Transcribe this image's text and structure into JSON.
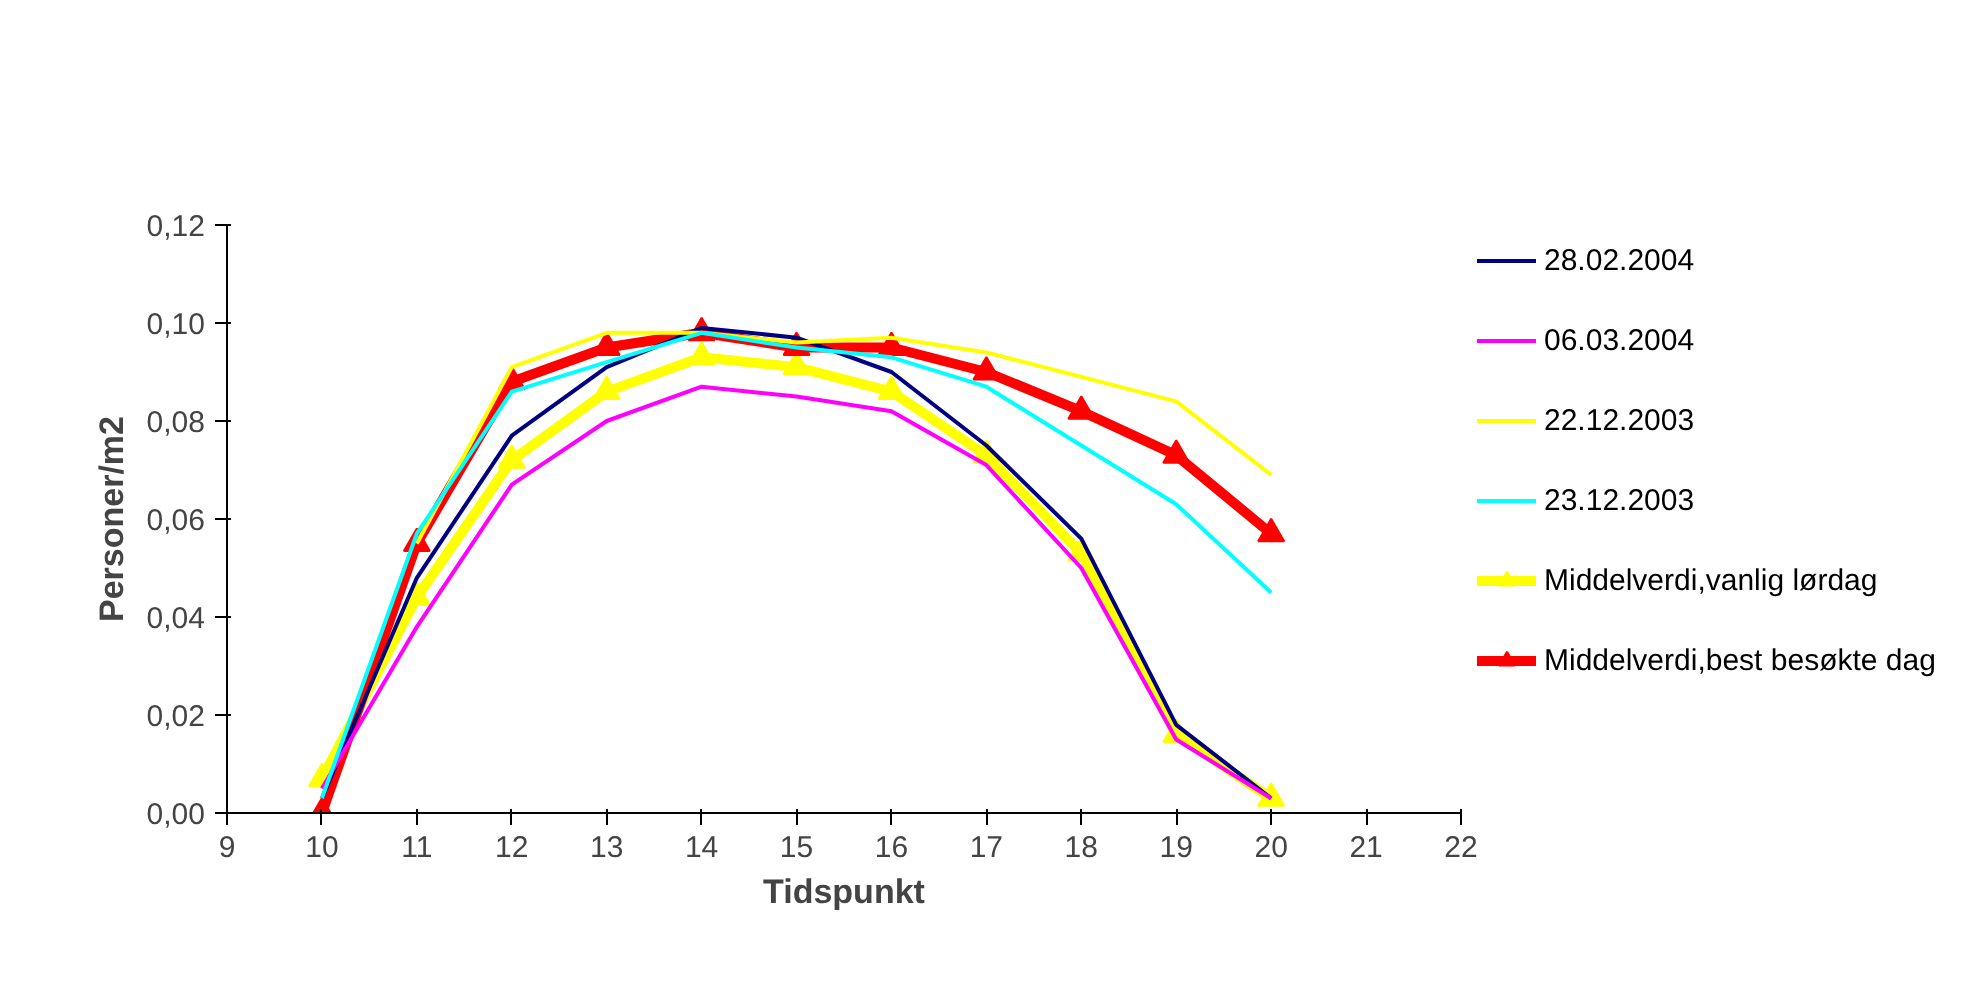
{
  "chart_data": {
    "type": "line",
    "xlabel": "Tidspunkt",
    "ylabel": "Personer/m2",
    "x": [
      10,
      11,
      12,
      13,
      14,
      15,
      16,
      17,
      18,
      19,
      20
    ],
    "xlim": [
      9,
      22
    ],
    "xticks": [
      9,
      10,
      11,
      12,
      13,
      14,
      15,
      16,
      17,
      18,
      19,
      20,
      21,
      22
    ],
    "ylim": [
      0,
      0.12
    ],
    "yticks": [
      {
        "value": 0,
        "label": "0,00"
      },
      {
        "value": 0.02,
        "label": "0,02"
      },
      {
        "value": 0.04,
        "label": "0,04"
      },
      {
        "value": 0.06,
        "label": "0,06"
      },
      {
        "value": 0.08,
        "label": "0,08"
      },
      {
        "value": 0.1,
        "label": "0,10"
      },
      {
        "value": 0.12,
        "label": "0,12"
      }
    ],
    "grid": false,
    "legend": "right",
    "series": [
      {
        "name": "28.02.2004",
        "color": "#000080",
        "marker": "none",
        "values": [
          0.003,
          0.048,
          0.077,
          0.091,
          0.099,
          0.097,
          0.09,
          0.075,
          0.056,
          0.018,
          0.003
        ]
      },
      {
        "name": "06.03.2004",
        "color": "#ff00ff",
        "marker": "none",
        "values": [
          0.005,
          0.038,
          0.067,
          0.08,
          0.087,
          0.085,
          0.082,
          0.071,
          0.05,
          0.015,
          0.003
        ]
      },
      {
        "name": "22.12.2003",
        "color": "#ffff00",
        "marker": "none",
        "values": [
          null,
          0.055,
          0.091,
          0.098,
          0.098,
          0.096,
          0.097,
          0.094,
          0.089,
          0.084,
          0.069
        ]
      },
      {
        "name": "23.12.2003",
        "color": "#00ffff",
        "marker": "none",
        "values": [
          0.003,
          0.057,
          0.086,
          0.092,
          0.098,
          0.095,
          0.093,
          0.087,
          0.075,
          0.063,
          0.045
        ]
      },
      {
        "name": "Middelverdi,vanlig lørdag",
        "color": "#ffff00",
        "marker": "triangle",
        "values": [
          0.007,
          0.044,
          0.072,
          0.086,
          0.093,
          0.091,
          0.086,
          0.073,
          0.053,
          0.016,
          0.003
        ]
      },
      {
        "name": "Middelverdi,best besøkte dag",
        "color": "#ff0000",
        "marker": "triangle",
        "values": [
          0.0,
          0.055,
          0.088,
          0.095,
          0.098,
          0.095,
          0.095,
          0.09,
          0.082,
          0.073,
          0.057
        ]
      }
    ]
  }
}
